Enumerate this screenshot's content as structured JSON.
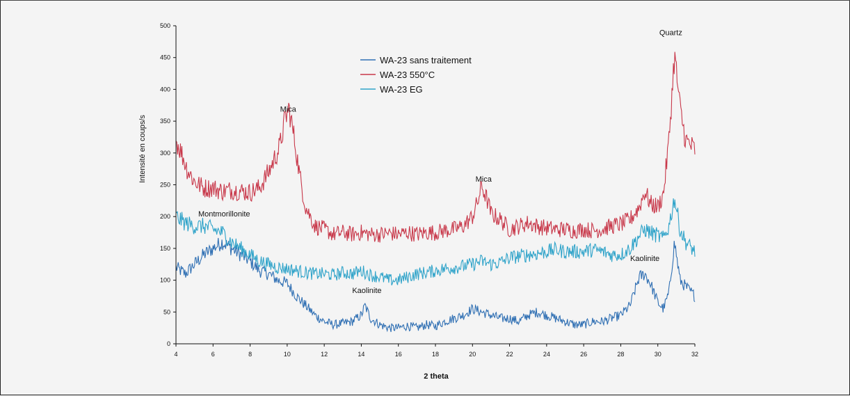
{
  "chart_data": {
    "type": "line",
    "title": "",
    "xlabel": "2 theta",
    "ylabel": "Intensité en coups/s",
    "xlim": [
      4,
      32
    ],
    "ylim": [
      0,
      500
    ],
    "x_ticks": [
      4,
      6,
      8,
      10,
      12,
      14,
      16,
      18,
      20,
      22,
      24,
      26,
      28,
      30,
      32
    ],
    "y_ticks": [
      0,
      50,
      100,
      150,
      200,
      250,
      300,
      350,
      400,
      450,
      500
    ],
    "grid": false,
    "legend_position": "top-center",
    "series": [
      {
        "name": "WA-23 sans traitement",
        "color": "#2f6fb3",
        "x": [
          4,
          4.5,
          5,
          5.5,
          6,
          6.5,
          7,
          7.5,
          8,
          8.5,
          9,
          9.5,
          10,
          10.5,
          11,
          11.5,
          12,
          12.5,
          13,
          13.5,
          14,
          14.2,
          14.5,
          15,
          15.5,
          16,
          16.5,
          17,
          17.5,
          18,
          18.5,
          19,
          19.5,
          20,
          20.5,
          21,
          21.5,
          22,
          22.5,
          23,
          23.5,
          24,
          24.5,
          25,
          25.5,
          26,
          26.5,
          27,
          27.5,
          28,
          28.5,
          29,
          29.3,
          29.6,
          30,
          30.3,
          30.6,
          30.9,
          31.2,
          31.5,
          32
        ],
        "values": [
          120,
          110,
          125,
          140,
          150,
          160,
          150,
          140,
          130,
          115,
          110,
          100,
          95,
          75,
          60,
          45,
          35,
          30,
          32,
          35,
          45,
          60,
          40,
          30,
          25,
          25,
          28,
          25,
          30,
          28,
          35,
          40,
          45,
          55,
          50,
          45,
          40,
          40,
          35,
          45,
          50,
          45,
          40,
          35,
          30,
          30,
          35,
          35,
          40,
          45,
          60,
          105,
          110,
          95,
          65,
          55,
          80,
          160,
          100,
          90,
          75
        ]
      },
      {
        "name": "WA-23 550°C",
        "color": "#c8384a",
        "x": [
          4,
          4.3,
          4.6,
          5,
          5.5,
          6,
          6.5,
          7,
          7.5,
          8,
          8.5,
          9,
          9.3,
          9.6,
          9.9,
          10.1,
          10.4,
          10.7,
          11,
          11.5,
          12,
          12.5,
          13,
          13.5,
          14,
          14.5,
          15,
          15.5,
          16,
          16.5,
          17,
          17.5,
          18,
          18.5,
          19,
          19.5,
          20,
          20.3,
          20.5,
          20.8,
          21,
          21.5,
          22,
          22.5,
          23,
          23.5,
          24,
          24.5,
          25,
          25.5,
          26,
          26.5,
          27,
          27.5,
          28,
          28.5,
          29,
          29.3,
          29.6,
          30,
          30.3,
          30.6,
          30.9,
          31.2,
          31.5,
          32
        ],
        "values": [
          320,
          300,
          275,
          255,
          245,
          245,
          240,
          242,
          240,
          238,
          245,
          270,
          290,
          310,
          355,
          370,
          320,
          260,
          215,
          185,
          180,
          172,
          175,
          172,
          175,
          172,
          172,
          174,
          172,
          175,
          172,
          175,
          175,
          178,
          180,
          185,
          200,
          225,
          248,
          225,
          205,
          195,
          180,
          185,
          190,
          185,
          182,
          180,
          180,
          178,
          180,
          178,
          180,
          185,
          188,
          195,
          215,
          240,
          220,
          215,
          235,
          320,
          455,
          370,
          320,
          305
        ]
      },
      {
        "name": "WA-23 EG",
        "color": "#2fa3c9",
        "x": [
          4,
          4.5,
          5,
          5.5,
          6,
          6.5,
          7,
          7.5,
          8,
          8.5,
          9,
          9.5,
          10,
          10.5,
          11,
          11.5,
          12,
          12.5,
          13,
          13.5,
          14,
          14.5,
          15,
          15.5,
          16,
          16.5,
          17,
          17.5,
          18,
          18.5,
          19,
          19.5,
          20,
          20.5,
          21,
          21.5,
          22,
          22.5,
          23,
          23.5,
          24,
          24.5,
          25,
          25.5,
          26,
          26.5,
          27,
          27.5,
          28,
          28.5,
          29,
          29.3,
          29.6,
          30,
          30.3,
          30.6,
          30.9,
          31.2,
          31.5,
          32
        ],
        "values": [
          200,
          190,
          185,
          185,
          180,
          175,
          160,
          150,
          140,
          130,
          125,
          120,
          118,
          115,
          112,
          110,
          110,
          108,
          112,
          110,
          115,
          108,
          105,
          100,
          100,
          105,
          110,
          112,
          115,
          118,
          120,
          122,
          125,
          130,
          125,
          128,
          135,
          138,
          140,
          142,
          145,
          148,
          145,
          145,
          145,
          148,
          145,
          140,
          140,
          150,
          170,
          180,
          175,
          170,
          165,
          185,
          230,
          180,
          160,
          145
        ]
      }
    ],
    "annotations": [
      {
        "text": "Mica",
        "x": 10.05,
        "y": 365
      },
      {
        "text": "Mica",
        "x": 20.6,
        "y": 255
      },
      {
        "text": "Quartz",
        "x": 30.7,
        "y": 485
      },
      {
        "text": "Montmorillonite",
        "x": 6.6,
        "y": 200
      },
      {
        "text": "Kaolinite",
        "x": 14.3,
        "y": 80
      },
      {
        "text": "Kaolinite",
        "x": 29.3,
        "y": 130
      }
    ]
  }
}
